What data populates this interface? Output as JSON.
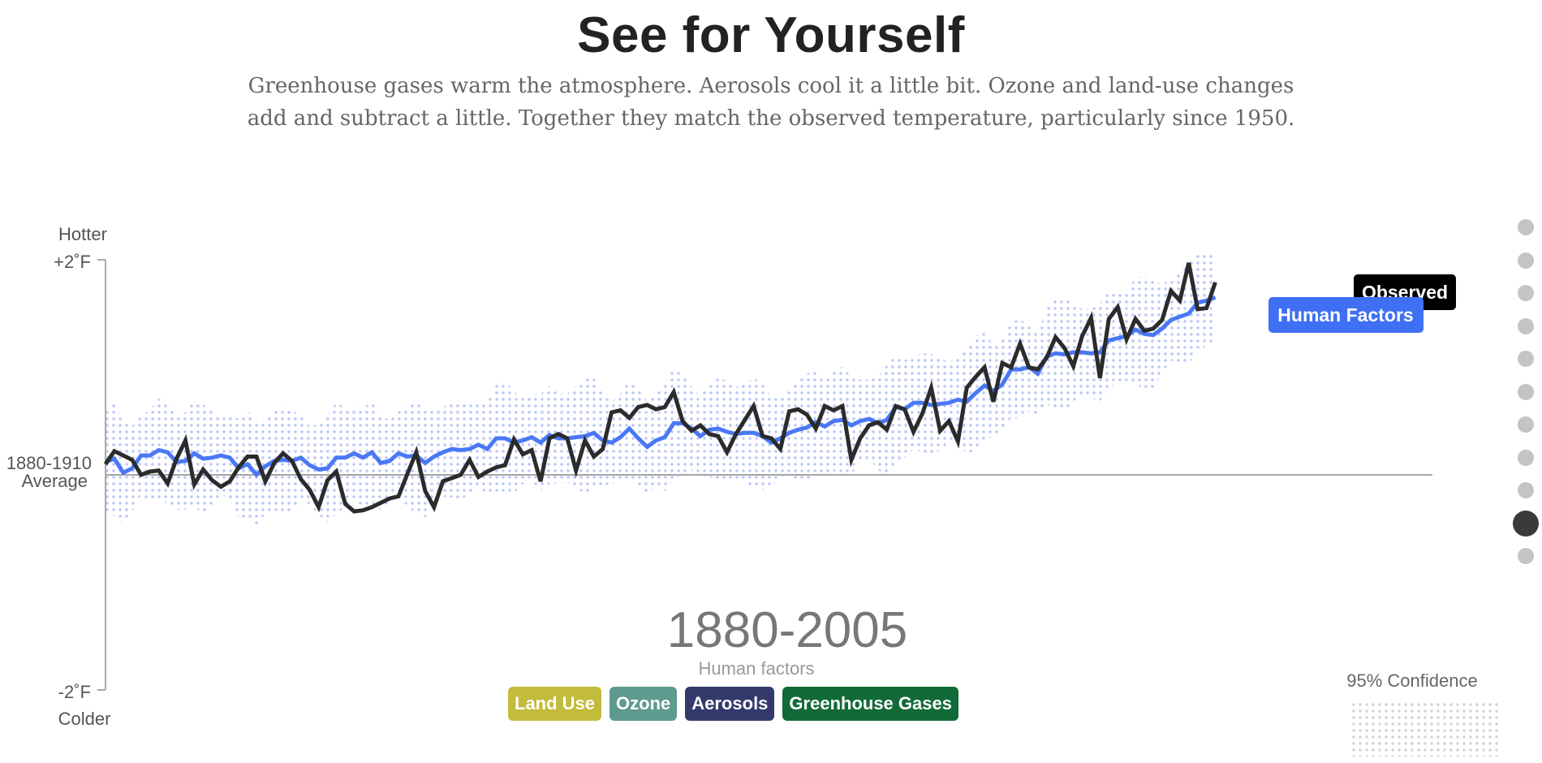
{
  "header": {
    "title": "See for Yourself",
    "subtitle_line1": "Greenhouse gases warm the atmosphere. Aerosols cool it a little bit. Ozone and land-use changes",
    "subtitle_line2": "add and subtract a little. Together they match the observed temperature, particularly since 1950."
  },
  "axis": {
    "top_label": "Hotter",
    "top_tick": "+2˚F",
    "middle_label_1": "1880-1910",
    "middle_label_2": "Average",
    "bottom_tick": "-2˚F",
    "bottom_label": "Colder"
  },
  "period": {
    "years": "1880-2005",
    "caption": "Human factors"
  },
  "legend": {
    "confidence_label": "95% Confidence",
    "observed_label": "Observed",
    "human_label": "Human Factors"
  },
  "factors": [
    {
      "label": "Land Use",
      "color": "#c3bb3b"
    },
    {
      "label": "Ozone",
      "color": "#5f9a90"
    },
    {
      "label": "Aerosols",
      "color": "#333a6b"
    },
    {
      "label": "Greenhouse Gases",
      "color": "#126a37"
    }
  ],
  "nav": {
    "dot_count": 11,
    "active_index": 9
  },
  "colors": {
    "observed": "#2b2b2b",
    "human_factors": "#4a78f5",
    "confidence_band": "#b9c6f7",
    "baseline": "#888888"
  },
  "chart_data": {
    "type": "line",
    "title": "See for Yourself",
    "ylabel": "",
    "xlabel": "",
    "ylim": [
      -2,
      2
    ],
    "x_range": [
      1880,
      2014
    ],
    "units": "˚F",
    "band_half_width": 0.45,
    "series": [
      {
        "name": "Observed",
        "x": [
          1880,
          1881,
          1882,
          1883,
          1884,
          1885,
          1886,
          1887,
          1888,
          1889,
          1890,
          1891,
          1892,
          1893,
          1894,
          1895,
          1896,
          1897,
          1898,
          1899,
          1900,
          1901,
          1902,
          1903,
          1904,
          1905,
          1906,
          1907,
          1908,
          1909,
          1910,
          1911,
          1912,
          1913,
          1914,
          1915,
          1916,
          1917,
          1918,
          1919,
          1920,
          1921,
          1922,
          1923,
          1924,
          1925,
          1926,
          1927,
          1928,
          1929,
          1930,
          1931,
          1932,
          1933,
          1934,
          1935,
          1936,
          1937,
          1938,
          1939,
          1940,
          1941,
          1942,
          1943,
          1944,
          1945,
          1946,
          1947,
          1948,
          1949,
          1950,
          1951,
          1952,
          1953,
          1954,
          1955,
          1956,
          1957,
          1958,
          1959,
          1960,
          1961,
          1962,
          1963,
          1964,
          1965,
          1966,
          1967,
          1968,
          1969,
          1970,
          1971,
          1972,
          1973,
          1974,
          1975,
          1976,
          1977,
          1978,
          1979,
          1980,
          1981,
          1982,
          1983,
          1984,
          1985,
          1986,
          1987,
          1988,
          1989,
          1990,
          1991,
          1992,
          1993,
          1994,
          1995,
          1996,
          1997,
          1998,
          1999,
          2000,
          2001,
          2002,
          2003,
          2004,
          2005
        ],
        "values": [
          0.1,
          0.22,
          0.18,
          0.14,
          0.0,
          0.03,
          0.04,
          -0.08,
          0.15,
          0.32,
          -0.09,
          0.05,
          -0.05,
          -0.11,
          -0.06,
          0.07,
          0.17,
          0.17,
          -0.06,
          0.11,
          0.2,
          0.13,
          -0.04,
          -0.14,
          -0.3,
          -0.05,
          0.03,
          -0.27,
          -0.34,
          -0.33,
          -0.3,
          -0.26,
          -0.22,
          -0.2,
          0.01,
          0.21,
          -0.15,
          -0.3,
          -0.06,
          -0.03,
          0.0,
          0.14,
          -0.02,
          0.03,
          0.07,
          0.09,
          0.33,
          0.19,
          0.23,
          -0.06,
          0.34,
          0.38,
          0.34,
          0.04,
          0.32,
          0.17,
          0.24,
          0.58,
          0.6,
          0.53,
          0.63,
          0.65,
          0.61,
          0.63,
          0.77,
          0.5,
          0.41,
          0.46,
          0.38,
          0.36,
          0.21,
          0.38,
          0.51,
          0.64,
          0.36,
          0.34,
          0.24,
          0.59,
          0.61,
          0.56,
          0.43,
          0.64,
          0.6,
          0.64,
          0.14,
          0.34,
          0.46,
          0.49,
          0.42,
          0.64,
          0.61,
          0.4,
          0.57,
          0.81,
          0.41,
          0.5,
          0.31,
          0.81,
          0.91,
          1.0,
          0.68,
          1.04,
          1.0,
          1.22,
          1.0,
          0.98,
          1.09,
          1.28,
          1.18,
          1.01,
          1.29,
          1.46,
          0.9,
          1.45,
          1.56,
          1.26,
          1.45,
          1.34,
          1.36,
          1.44,
          1.71,
          1.62,
          1.97,
          1.54,
          1.55,
          1.79
        ]
      },
      {
        "name": "Human Factors",
        "x": [
          1880,
          1881,
          1882,
          1883,
          1884,
          1885,
          1886,
          1887,
          1888,
          1889,
          1890,
          1891,
          1892,
          1893,
          1894,
          1895,
          1896,
          1897,
          1898,
          1899,
          1900,
          1901,
          1902,
          1903,
          1904,
          1905,
          1906,
          1907,
          1908,
          1909,
          1910,
          1911,
          1912,
          1913,
          1914,
          1915,
          1916,
          1917,
          1918,
          1919,
          1920,
          1921,
          1922,
          1923,
          1924,
          1925,
          1926,
          1927,
          1928,
          1929,
          1930,
          1931,
          1932,
          1933,
          1934,
          1935,
          1936,
          1937,
          1938,
          1939,
          1940,
          1941,
          1942,
          1943,
          1944,
          1945,
          1946,
          1947,
          1948,
          1949,
          1950,
          1951,
          1952,
          1953,
          1954,
          1955,
          1956,
          1957,
          1958,
          1959,
          1960,
          1961,
          1962,
          1963,
          1964,
          1965,
          1966,
          1967,
          1968,
          1969,
          1970,
          1971,
          1972,
          1973,
          1974,
          1975,
          1976,
          1977,
          1978,
          1979,
          1980,
          1981,
          1982,
          1983,
          1984,
          1985,
          1986,
          1987,
          1988,
          1989,
          1990,
          1991,
          1992,
          1993,
          1994,
          1995,
          1996,
          1997,
          1998,
          1999,
          2000,
          2001,
          2002,
          2003,
          2004,
          2005
        ],
        "values": [
          0.12,
          0.15,
          0.02,
          0.06,
          0.18,
          0.18,
          0.23,
          0.21,
          0.12,
          0.13,
          0.2,
          0.15,
          0.16,
          0.18,
          0.16,
          0.06,
          0.1,
          0.0,
          0.08,
          0.13,
          0.14,
          0.13,
          0.16,
          0.09,
          0.05,
          0.06,
          0.16,
          0.16,
          0.2,
          0.16,
          0.21,
          0.11,
          0.13,
          0.2,
          0.17,
          0.18,
          0.11,
          0.17,
          0.21,
          0.24,
          0.23,
          0.24,
          0.28,
          0.24,
          0.34,
          0.34,
          0.3,
          0.32,
          0.35,
          0.3,
          0.37,
          0.34,
          0.34,
          0.35,
          0.36,
          0.39,
          0.32,
          0.3,
          0.35,
          0.43,
          0.34,
          0.26,
          0.32,
          0.35,
          0.48,
          0.48,
          0.43,
          0.36,
          0.42,
          0.43,
          0.4,
          0.38,
          0.39,
          0.39,
          0.36,
          0.3,
          0.34,
          0.39,
          0.42,
          0.44,
          0.49,
          0.45,
          0.5,
          0.51,
          0.46,
          0.5,
          0.52,
          0.48,
          0.51,
          0.63,
          0.61,
          0.67,
          0.67,
          0.65,
          0.66,
          0.67,
          0.7,
          0.68,
          0.76,
          0.83,
          0.78,
          0.84,
          0.98,
          0.98,
          1.0,
          0.94,
          1.1,
          1.13,
          1.12,
          1.14,
          1.14,
          1.13,
          1.14,
          1.25,
          1.27,
          1.29,
          1.35,
          1.31,
          1.3,
          1.36,
          1.44,
          1.47,
          1.5,
          1.6,
          1.62,
          1.65
        ]
      }
    ]
  }
}
